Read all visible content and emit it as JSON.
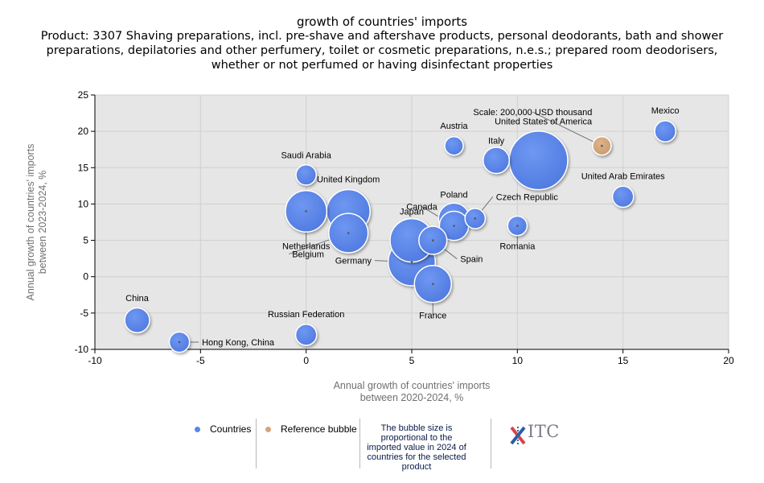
{
  "title": {
    "line1": "growth of countries' imports",
    "line2": "Product: 3307 Shaving preparations, incl. pre-shave and aftershave products, personal deodorants, bath and shower preparations, depilatories and other perfumery, toilet or cosmetic preparations, n.e.s.; prepared room deodorisers, whether or not perfumed or having disinfectant properties"
  },
  "colors": {
    "plot_bg": "#e6e6e6",
    "gridline": "#d0d0d0",
    "countries": "#5b86e8",
    "reference": "#d4a57a",
    "leader_line": "#707070"
  },
  "legend": {
    "countries_label": "Countries",
    "reference_label": "Reference bubble",
    "note": "The bubble size is proportional to the imported value in 2024 of countries for the selected product",
    "logo_text": "ITC"
  },
  "chart_data": {
    "type": "scatter",
    "subtype": "bubble",
    "xlabel": "Annual growth of countries' imports between 2020-2024, %",
    "ylabel": "Annual growth of countries' imports between 2023-2024, %",
    "xlim": [
      -10,
      20
    ],
    "ylim": [
      -10,
      25
    ],
    "x_ticks": [
      -10,
      -5,
      0,
      5,
      10,
      15,
      20
    ],
    "y_ticks": [
      -10,
      -5,
      0,
      5,
      10,
      15,
      20,
      25
    ],
    "grid": true,
    "series": [
      {
        "name": "Countries",
        "points": [
          {
            "label": "United States of America",
            "x": 11,
            "y": 16,
            "size": 10
          },
          {
            "label": "Germany",
            "x": 5,
            "y": 2,
            "size": 6.5
          },
          {
            "label": "Netherlands",
            "x": 0,
            "y": 9,
            "size": 5
          },
          {
            "label": "United Kingdom",
            "x": 2,
            "y": 9,
            "size": 5.5
          },
          {
            "label": "Belgium",
            "x": 2,
            "y": 6,
            "size": 4.5
          },
          {
            "label": "Japan",
            "x": 5,
            "y": 5,
            "size": 5.5
          },
          {
            "label": "France",
            "x": 6,
            "y": -1,
            "size": 4
          },
          {
            "label": "Spain",
            "x": 6,
            "y": 5,
            "size": 2.3
          },
          {
            "label": "Poland",
            "x": 7,
            "y": 8,
            "size": 2.8
          },
          {
            "label": "Canada",
            "x": 7,
            "y": 7,
            "size": 2.5
          },
          {
            "label": "Czech Republic",
            "x": 8,
            "y": 8,
            "size": 1.2
          },
          {
            "label": "Italy",
            "x": 9,
            "y": 16,
            "size": 2
          },
          {
            "label": "Austria",
            "x": 7,
            "y": 18,
            "size": 1
          },
          {
            "label": "Mexico",
            "x": 17,
            "y": 20,
            "size": 1.3
          },
          {
            "label": "United Arab Emirates",
            "x": 15,
            "y": 11,
            "size": 1.3
          },
          {
            "label": "Romania",
            "x": 10,
            "y": 7,
            "size": 1.1
          },
          {
            "label": "Saudi Arabia",
            "x": 0,
            "y": 14,
            "size": 1.2
          },
          {
            "label": "China",
            "x": -8,
            "y": -6,
            "size": 1.8
          },
          {
            "label": "Russian Federation",
            "x": 0,
            "y": -8,
            "size": 1.3
          },
          {
            "label": "Hong Kong, China",
            "x": -6,
            "y": -9,
            "size": 1.2
          }
        ]
      },
      {
        "name": "Reference bubble",
        "points": [
          {
            "label": "Scale: 200,000 USD thousand",
            "x": 14,
            "y": 18,
            "size": 1
          }
        ]
      }
    ]
  }
}
